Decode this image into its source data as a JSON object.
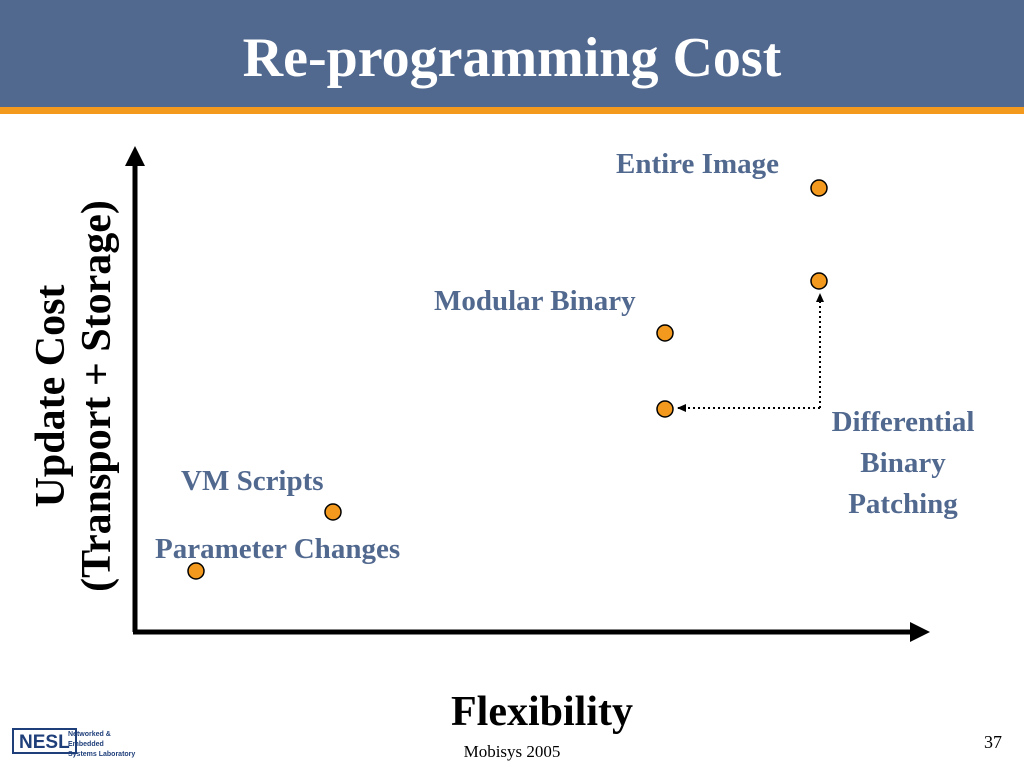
{
  "title": "Re-programming Cost",
  "axes": {
    "x_title": "Flexibility",
    "y_title_line1": "Update Cost",
    "y_title_line2": "(Transport + Storage)"
  },
  "points": [
    {
      "label": "Parameter Changes"
    },
    {
      "label": "VM Scripts"
    },
    {
      "label": "Modular Binary"
    },
    {
      "label": "Entire Image"
    }
  ],
  "patching_label": [
    "Differential",
    "Binary",
    "Patching"
  ],
  "footer": {
    "conference": "Mobisys 2005",
    "page_number": "37",
    "logo_mark": "NESL",
    "logo_line1": "Networked & Embedded",
    "logo_line2": "Systems Laboratory"
  },
  "colors": {
    "title_bar": "#52698f",
    "accent_stripe": "#f39a1e",
    "point_fill": "#f39a1e",
    "label_text": "#52698f"
  }
}
